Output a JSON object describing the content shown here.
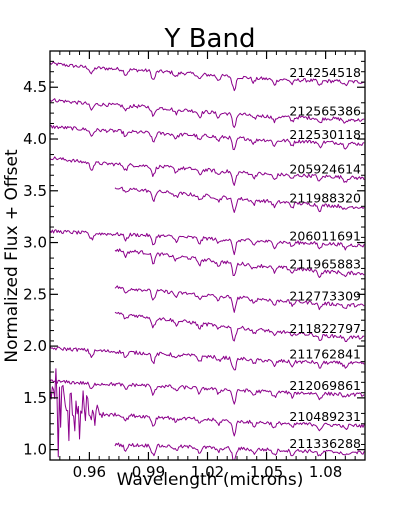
{
  "chart_data": {
    "type": "line",
    "title": "Y Band",
    "xlabel": "Wavelength (microns)",
    "ylabel": "Normalized Flux + Offset",
    "xlim": [
      0.94,
      1.1
    ],
    "ylim": [
      0.9,
      4.85
    ],
    "x_ticks": [
      0.96,
      0.99,
      1.02,
      1.05,
      1.08
    ],
    "x_tick_labels": [
      "0.96",
      "0.99",
      "1.02",
      "1.05",
      "1.08"
    ],
    "y_ticks": [
      1.0,
      1.5,
      2.0,
      2.5,
      3.0,
      3.5,
      4.0,
      4.5
    ],
    "y_tick_labels": [
      "1.0",
      "1.5",
      "2.0",
      "2.5",
      "3.0",
      "3.5",
      "4.0",
      "4.5"
    ],
    "line_color": "#8b008b",
    "grid": false,
    "series": [
      {
        "name": "214254518",
        "x_start": 0.94,
        "x": [
          0.94,
          0.96,
          0.99,
          1.02,
          1.05,
          1.08,
          1.1
        ],
        "values": [
          4.73,
          4.69,
          4.66,
          4.62,
          4.58,
          4.56,
          4.55
        ]
      },
      {
        "name": "212565386",
        "x_start": 0.94,
        "x": [
          0.94,
          0.96,
          0.99,
          1.02,
          1.05,
          1.08,
          1.1
        ],
        "values": [
          4.38,
          4.34,
          4.31,
          4.26,
          4.22,
          4.2,
          4.18
        ]
      },
      {
        "name": "212530118",
        "x_start": 0.94,
        "x": [
          0.94,
          0.96,
          0.99,
          1.02,
          1.05,
          1.08,
          1.1
        ],
        "values": [
          4.12,
          4.09,
          4.06,
          4.03,
          3.99,
          3.97,
          3.95
        ]
      },
      {
        "name": "205924614",
        "x_start": 0.94,
        "x": [
          0.94,
          0.96,
          0.99,
          1.02,
          1.05,
          1.08,
          1.1
        ],
        "values": [
          3.82,
          3.77,
          3.74,
          3.7,
          3.66,
          3.64,
          3.62
        ]
      },
      {
        "name": "211988320",
        "x_start": 0.973,
        "x": [
          0.973,
          0.99,
          1.02,
          1.05,
          1.08,
          1.1
        ],
        "values": [
          3.53,
          3.5,
          3.45,
          3.4,
          3.36,
          3.34
        ]
      },
      {
        "name": "206011691",
        "x_start": 0.94,
        "x": [
          0.94,
          0.96,
          0.99,
          1.02,
          1.05,
          1.08,
          1.1
        ],
        "values": [
          3.11,
          3.09,
          3.07,
          3.04,
          3.01,
          2.99,
          2.97
        ]
      },
      {
        "name": "211965883",
        "x_start": 0.973,
        "x": [
          0.973,
          0.99,
          1.02,
          1.05,
          1.08,
          1.1
        ],
        "values": [
          2.93,
          2.9,
          2.83,
          2.77,
          2.72,
          2.7
        ]
      },
      {
        "name": "212773309",
        "x_start": 0.973,
        "x": [
          0.973,
          0.99,
          1.02,
          1.05,
          1.08,
          1.1
        ],
        "values": [
          2.57,
          2.54,
          2.49,
          2.45,
          2.41,
          2.39
        ]
      },
      {
        "name": "211822797",
        "x_start": 0.973,
        "x": [
          0.973,
          0.99,
          1.02,
          1.05,
          1.08,
          1.1
        ],
        "values": [
          2.32,
          2.28,
          2.21,
          2.15,
          2.1,
          2.08
        ]
      },
      {
        "name": "211762841",
        "x_start": 0.94,
        "x": [
          0.94,
          0.96,
          0.99,
          1.02,
          1.05,
          1.08,
          1.1
        ],
        "values": [
          1.98,
          1.96,
          1.93,
          1.9,
          1.86,
          1.84,
          1.83
        ]
      },
      {
        "name": "212069861",
        "x_start": 0.94,
        "x": [
          0.94,
          0.96,
          0.99,
          1.02,
          1.05,
          1.08,
          1.1
        ],
        "values": [
          1.66,
          1.64,
          1.62,
          1.59,
          1.56,
          1.54,
          1.53
        ]
      },
      {
        "name": "210489231",
        "x_start": 0.94,
        "x": [
          0.94,
          0.955,
          0.97,
          0.99,
          1.02,
          1.05,
          1.08,
          1.1
        ],
        "values": [
          1.4,
          1.36,
          1.34,
          1.32,
          1.29,
          1.26,
          1.24,
          1.23
        ]
      },
      {
        "name": "211336288",
        "x_start": 0.973,
        "x": [
          0.973,
          0.99,
          1.02,
          1.05,
          1.08,
          1.1
        ],
        "values": [
          1.05,
          1.04,
          1.02,
          1.0,
          0.98,
          0.97
        ]
      }
    ]
  }
}
